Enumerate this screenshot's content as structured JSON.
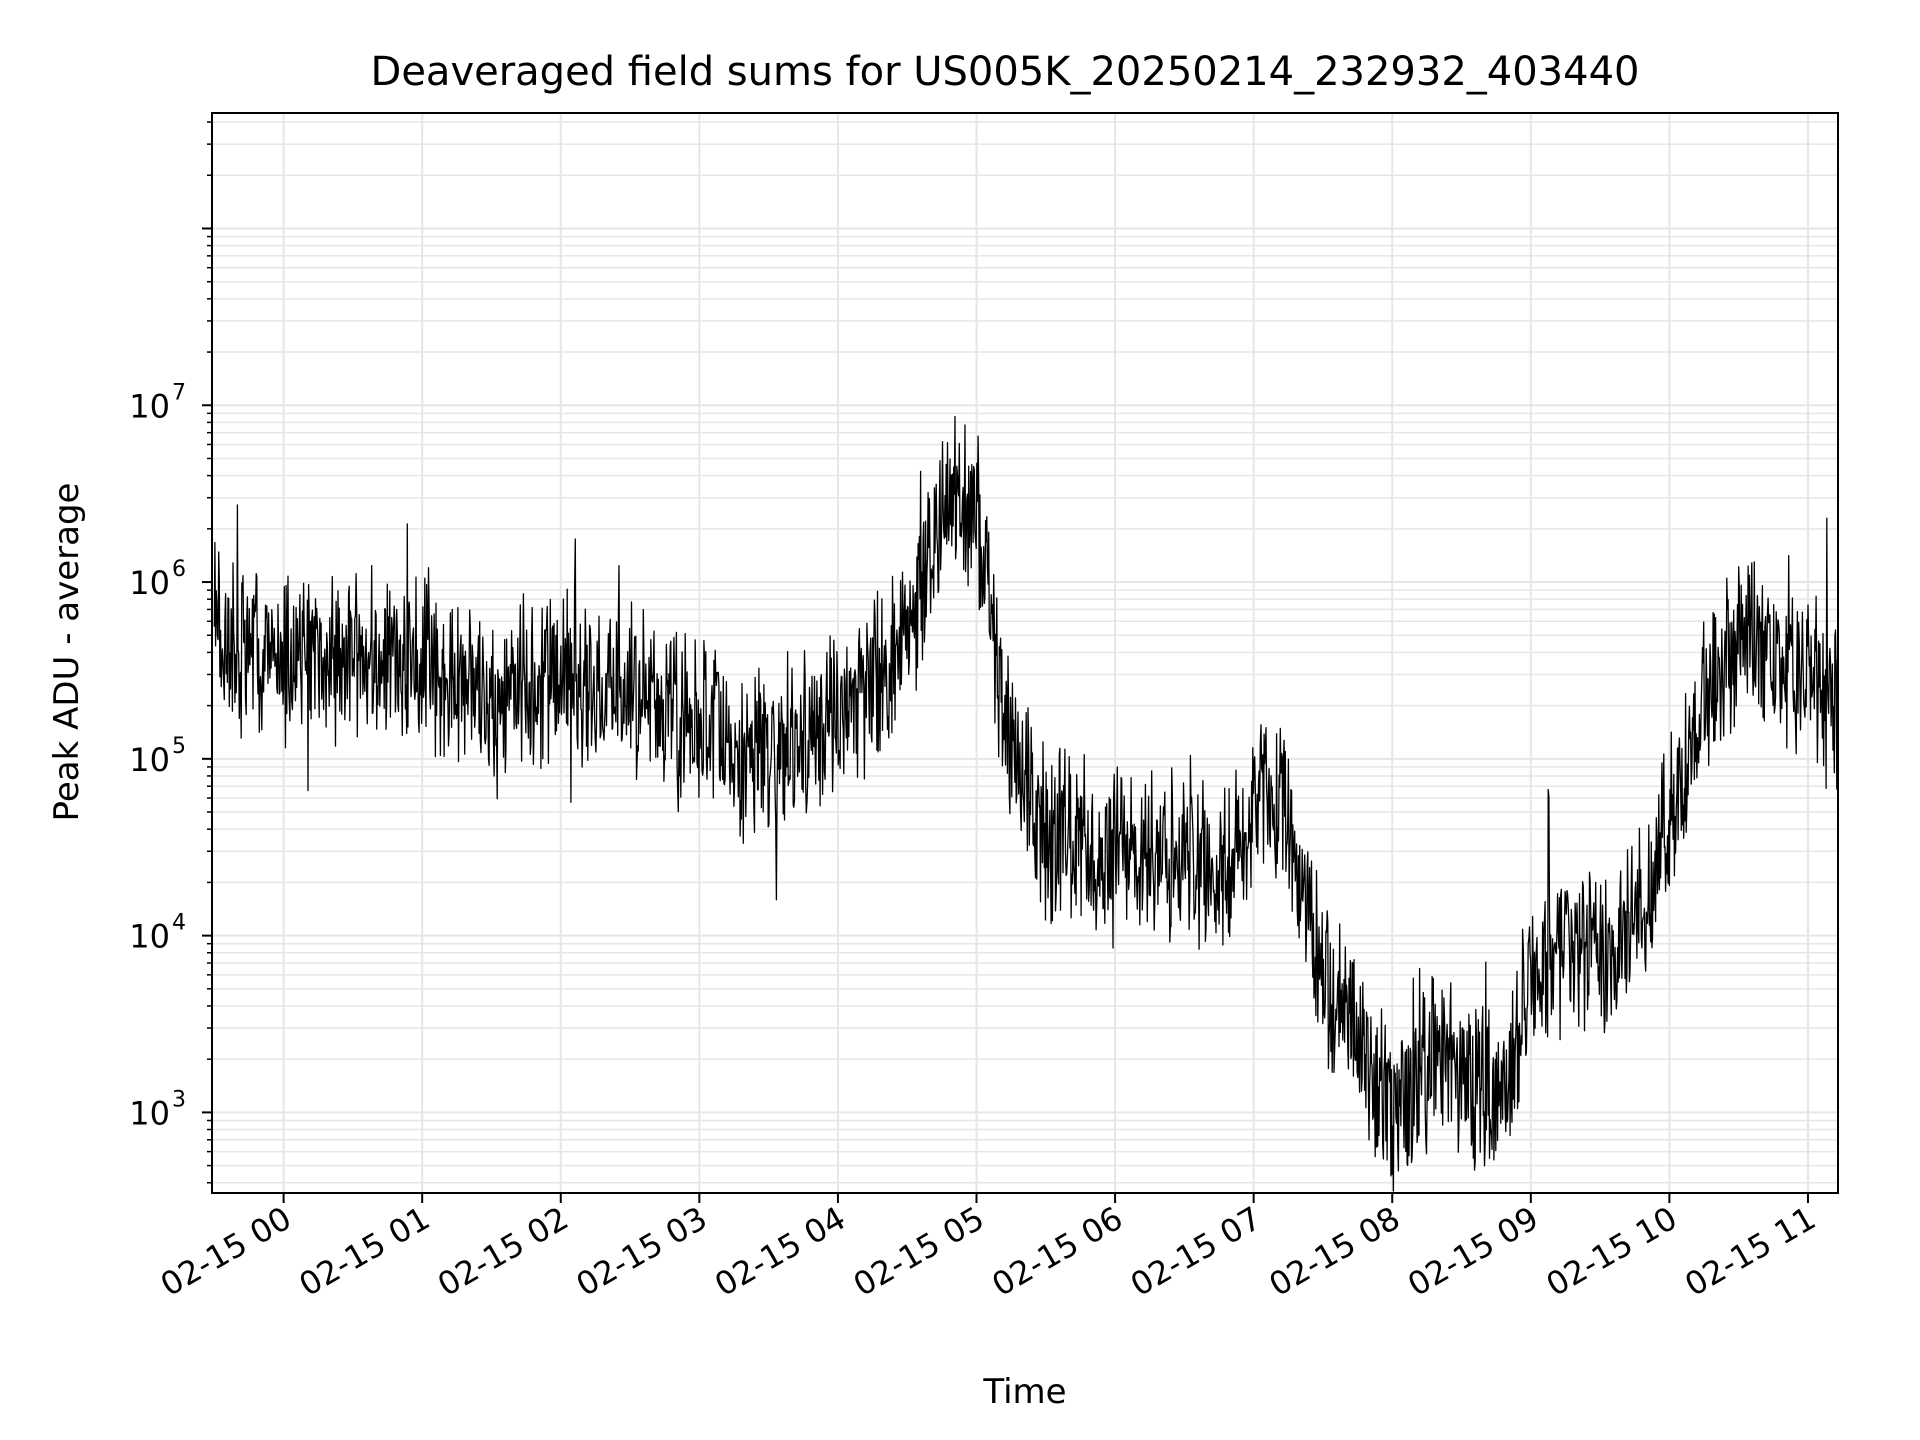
{
  "chart_data": {
    "type": "line",
    "title": "Deaveraged field sums for US005K_20250214_232932_403440",
    "xlabel": "Time",
    "ylabel": "Peak ADU - average",
    "y_scale": "log",
    "x_range": [
      "2025-02-14 23:29",
      "2025-02-15 11:13"
    ],
    "ylim": [
      350,
      450000000
    ],
    "grid": true,
    "line_color": "#000000",
    "x_ticks": [
      {
        "value": "2025-02-15 00:00",
        "label": "02-15 00"
      },
      {
        "value": "2025-02-15 01:00",
        "label": "02-15 01"
      },
      {
        "value": "2025-02-15 02:00",
        "label": "02-15 02"
      },
      {
        "value": "2025-02-15 03:00",
        "label": "02-15 03"
      },
      {
        "value": "2025-02-15 04:00",
        "label": "02-15 04"
      },
      {
        "value": "2025-02-15 05:00",
        "label": "02-15 05"
      },
      {
        "value": "2025-02-15 06:00",
        "label": "02-15 06"
      },
      {
        "value": "2025-02-15 07:00",
        "label": "02-15 07"
      },
      {
        "value": "2025-02-15 08:00",
        "label": "02-15 08"
      },
      {
        "value": "2025-02-15 09:00",
        "label": "02-15 09"
      },
      {
        "value": "2025-02-15 10:00",
        "label": "02-15 10"
      },
      {
        "value": "2025-02-15 11:00",
        "label": "02-15 11"
      }
    ],
    "y_ticks": [
      {
        "value": 1000,
        "base": "10",
        "exp": "3"
      },
      {
        "value": 10000,
        "base": "10",
        "exp": "4"
      },
      {
        "value": 100000,
        "base": "10",
        "exp": "5"
      },
      {
        "value": 1000000,
        "base": "10",
        "exp": "6"
      },
      {
        "value": 10000000,
        "base": "10",
        "exp": "7"
      }
    ],
    "series": [
      {
        "x": [
          "2025-02-14 23:30",
          "2025-02-14 23:35",
          "2025-02-14 23:40",
          "2025-02-14 23:45",
          "2025-02-14 23:50",
          "2025-02-14 23:55",
          "2025-02-15 00:00",
          "2025-02-15 00:10",
          "2025-02-15 00:20",
          "2025-02-15 00:30",
          "2025-02-15 00:40",
          "2025-02-15 00:50",
          "2025-02-15 01:00",
          "2025-02-15 01:15",
          "2025-02-15 01:30",
          "2025-02-15 01:45",
          "2025-02-15 02:00",
          "2025-02-15 02:15",
          "2025-02-15 02:30",
          "2025-02-15 02:45",
          "2025-02-15 03:00",
          "2025-02-15 03:15",
          "2025-02-15 03:30",
          "2025-02-15 03:45",
          "2025-02-15 04:00",
          "2025-02-15 04:15",
          "2025-02-15 04:30",
          "2025-02-15 04:40",
          "2025-02-15 04:50",
          "2025-02-15 05:00",
          "2025-02-15 05:05",
          "2025-02-15 05:10",
          "2025-02-15 05:15",
          "2025-02-15 05:20",
          "2025-02-15 05:30",
          "2025-02-15 05:40",
          "2025-02-15 05:50",
          "2025-02-15 06:00",
          "2025-02-15 06:15",
          "2025-02-15 06:30",
          "2025-02-15 06:45",
          "2025-02-15 07:00",
          "2025-02-15 07:10",
          "2025-02-15 07:15",
          "2025-02-15 07:20",
          "2025-02-15 07:25",
          "2025-02-15 07:30",
          "2025-02-15 07:40",
          "2025-02-15 07:45",
          "2025-02-15 07:50",
          "2025-02-15 08:00",
          "2025-02-15 08:10",
          "2025-02-15 08:20",
          "2025-02-15 08:30",
          "2025-02-15 08:40",
          "2025-02-15 08:45",
          "2025-02-15 08:50",
          "2025-02-15 09:00",
          "2025-02-15 09:15",
          "2025-02-15 09:30",
          "2025-02-15 09:45",
          "2025-02-15 10:00",
          "2025-02-15 10:15",
          "2025-02-15 10:30",
          "2025-02-15 10:45",
          "2025-02-15 11:00",
          "2025-02-15 11:10"
        ],
        "values": [
          600000,
          420000,
          380000,
          450000,
          400000,
          420000,
          380000,
          400000,
          420000,
          390000,
          380000,
          340000,
          330000,
          280000,
          250000,
          230000,
          300000,
          260000,
          250000,
          200000,
          180000,
          120000,
          100000,
          140000,
          200000,
          280000,
          500000,
          1500000,
          3000000,
          2500000,
          900000,
          250000,
          120000,
          70000,
          40000,
          35000,
          30000,
          28000,
          25000,
          26000,
          22000,
          50000,
          60000,
          50000,
          20000,
          12000,
          5000,
          4000,
          3000,
          1500,
          1000,
          1400,
          2500,
          1500,
          1200,
          1100,
          1400,
          6000,
          8000,
          7000,
          13000,
          40000,
          200000,
          500000,
          400000,
          300000,
          200000
        ]
      }
    ]
  }
}
